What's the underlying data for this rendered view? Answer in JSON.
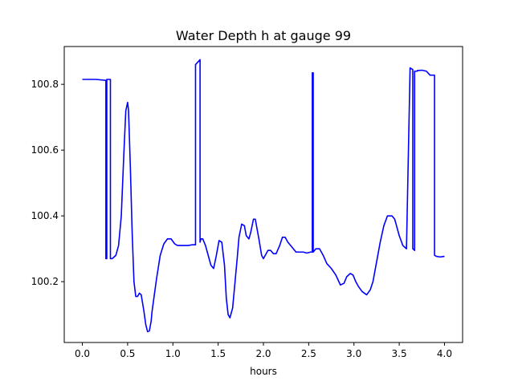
{
  "chart_data": {
    "type": "line",
    "title": "Water Depth h at gauge 99",
    "xlabel": "hours",
    "ylabel": "",
    "xlim": [
      -0.2,
      4.2
    ],
    "ylim": [
      100.015,
      100.915
    ],
    "xticks": [
      0.0,
      0.5,
      1.0,
      1.5,
      2.0,
      2.5,
      3.0,
      3.5,
      4.0
    ],
    "xtick_labels": [
      "0.0",
      "0.5",
      "1.0",
      "1.5",
      "2.0",
      "2.5",
      "3.0",
      "3.5",
      "4.0"
    ],
    "yticks": [
      100.2,
      100.4,
      100.6,
      100.8
    ],
    "ytick_labels": [
      "100.2",
      "100.4",
      "100.6",
      "100.8"
    ],
    "grid": false,
    "series": [
      {
        "color": "#0000ff",
        "x": [
          0.0,
          0.15,
          0.26,
          0.26,
          0.27,
          0.27,
          0.29,
          0.3,
          0.31,
          0.31,
          0.33,
          0.37,
          0.4,
          0.43,
          0.46,
          0.48,
          0.5,
          0.51,
          0.53,
          0.55,
          0.57,
          0.59,
          0.61,
          0.63,
          0.65,
          0.68,
          0.7,
          0.72,
          0.74,
          0.76,
          0.77,
          0.79,
          0.82,
          0.86,
          0.9,
          0.94,
          0.98,
          1.02,
          1.05,
          1.09,
          1.13,
          1.17,
          1.21,
          1.25,
          1.25,
          1.3,
          1.3,
          1.31,
          1.31,
          1.33,
          1.36,
          1.39,
          1.42,
          1.45,
          1.48,
          1.51,
          1.54,
          1.57,
          1.59,
          1.61,
          1.63,
          1.66,
          1.69,
          1.71,
          1.73,
          1.76,
          1.79,
          1.81,
          1.84,
          1.86,
          1.89,
          1.91,
          1.95,
          1.98,
          2.0,
          2.02,
          2.05,
          2.08,
          2.11,
          2.14,
          2.18,
          2.21,
          2.24,
          2.27,
          2.3,
          2.33,
          2.36,
          2.4,
          2.44,
          2.48,
          2.52,
          2.54,
          2.54,
          2.55,
          2.55,
          2.58,
          2.62,
          2.66,
          2.7,
          2.75,
          2.8,
          2.85,
          2.89,
          2.92,
          2.96,
          2.99,
          3.02,
          3.05,
          3.09,
          3.14,
          3.18,
          3.21,
          3.25,
          3.29,
          3.33,
          3.37,
          3.42,
          3.45,
          3.47,
          3.5,
          3.54,
          3.58,
          3.62,
          3.65,
          3.65,
          3.67,
          3.67,
          3.7,
          3.7,
          3.75,
          3.8,
          3.84,
          3.89,
          3.89,
          3.91,
          3.95,
          4.0
        ],
        "y": [
          100.815,
          100.815,
          100.812,
          100.27,
          100.27,
          100.815,
          100.815,
          100.815,
          100.815,
          100.27,
          100.27,
          100.28,
          100.31,
          100.4,
          100.6,
          100.72,
          100.745,
          100.72,
          100.55,
          100.35,
          100.2,
          100.155,
          100.155,
          100.165,
          100.16,
          100.11,
          100.07,
          100.048,
          100.05,
          100.08,
          100.11,
          100.15,
          100.21,
          100.28,
          100.315,
          100.33,
          100.33,
          100.315,
          100.31,
          100.31,
          100.31,
          100.31,
          100.312,
          100.312,
          100.86,
          100.875,
          100.32,
          100.33,
          100.33,
          100.33,
          100.31,
          100.28,
          100.25,
          100.24,
          100.28,
          100.325,
          100.32,
          100.25,
          100.15,
          100.1,
          100.09,
          100.12,
          100.21,
          100.27,
          100.335,
          100.375,
          100.37,
          100.34,
          100.33,
          100.35,
          100.39,
          100.39,
          100.33,
          100.28,
          100.27,
          100.28,
          100.295,
          100.295,
          100.285,
          100.285,
          100.31,
          100.335,
          100.335,
          100.32,
          100.31,
          100.3,
          100.29,
          100.29,
          100.29,
          100.287,
          100.29,
          100.29,
          100.835,
          100.835,
          100.29,
          100.3,
          100.3,
          100.28,
          100.255,
          100.24,
          100.22,
          100.19,
          100.195,
          100.215,
          100.225,
          100.22,
          100.2,
          100.185,
          100.17,
          100.16,
          100.175,
          100.2,
          100.26,
          100.32,
          100.37,
          100.4,
          100.4,
          100.39,
          100.37,
          100.34,
          100.31,
          100.3,
          100.85,
          100.845,
          100.3,
          100.295,
          100.84,
          100.84,
          100.842,
          100.843,
          100.84,
          100.828,
          100.828,
          100.28,
          100.277,
          100.275,
          100.277
        ]
      }
    ]
  }
}
